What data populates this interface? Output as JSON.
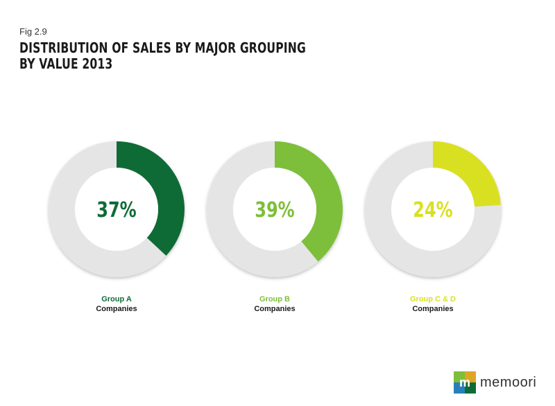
{
  "header": {
    "fig_label": "Fig 2.9",
    "title_line1": "DISTRIBUTION OF SALES BY MAJOR GROUPING",
    "title_line2": "BY VALUE 2013"
  },
  "chart_data": {
    "type": "pie",
    "title": "DISTRIBUTION OF SALES BY MAJOR GROUPING BY VALUE 2013",
    "slices": [
      {
        "group": "Group A",
        "sub": "Companies",
        "value": 37,
        "label": "37%",
        "color": "#0f6b36"
      },
      {
        "group": "Group B",
        "sub": "Companies",
        "value": 39,
        "label": "39%",
        "color": "#7dbf3a"
      },
      {
        "group": "Group C & D",
        "sub": "Companies",
        "value": 24,
        "label": "24%",
        "color": "#d9e021"
      }
    ],
    "track_color": "#e5e5e5"
  },
  "brand": {
    "logo_text": "memoori",
    "mark_letter": "m"
  }
}
